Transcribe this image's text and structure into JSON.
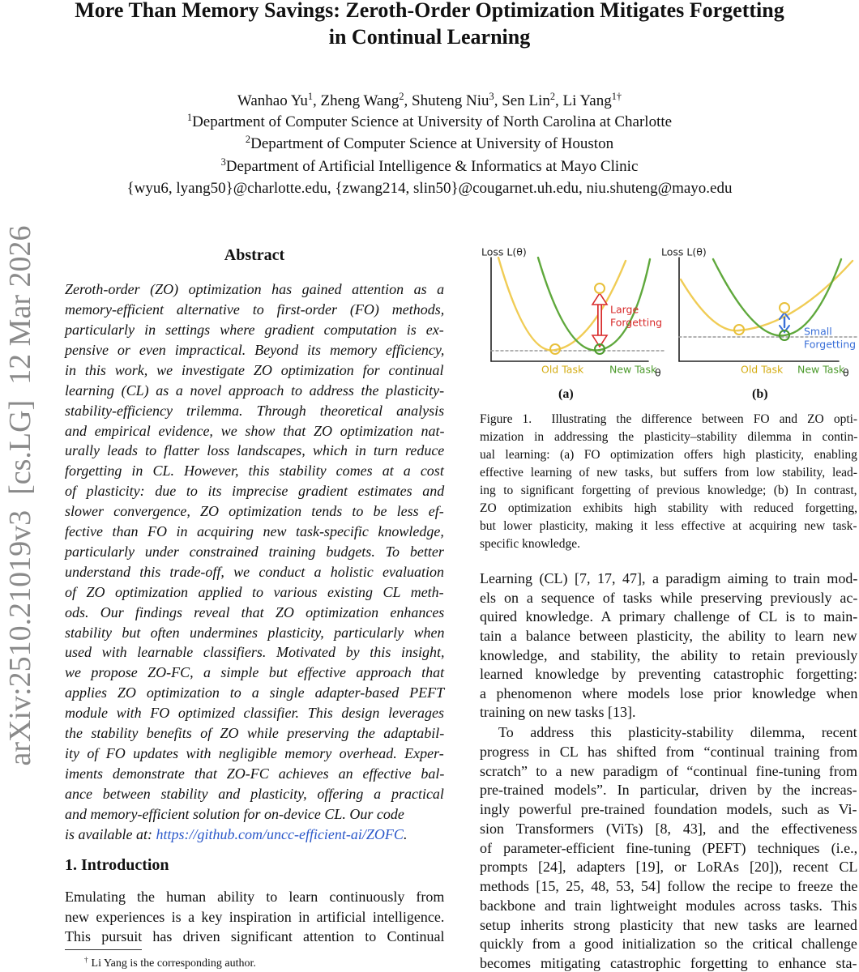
{
  "arxiv_stamp": "arXiv:2510.21019v3  [cs.LG]  12 Mar 2026",
  "title_lines": [
    "More Than Memory Savings: Zeroth-Order Optimization Mitigates Forgetting",
    "in Continual Learning"
  ],
  "authors": [
    {
      "name": "Wanhao Yu",
      "sup": "1"
    },
    {
      "name": "Zheng Wang",
      "sup": "2"
    },
    {
      "name": "Shuteng Niu",
      "sup": "3"
    },
    {
      "name": "Sen Lin",
      "sup": "2"
    },
    {
      "name": "Li Yang",
      "sup": "1†"
    }
  ],
  "authors_separator": ", ",
  "affiliations": [
    {
      "sup": "1",
      "text": "Department of Computer Science at University of North Carolina at Charlotte"
    },
    {
      "sup": "2",
      "text": "Department of Computer Science at University of Houston"
    },
    {
      "sup": "3",
      "text": "Department of Artificial Intelligence & Informatics at Mayo Clinic"
    }
  ],
  "emails": "{wyu6, lyang50}@charlotte.edu, {zwang214, slin50}@cougarnet.uh.edu, niu.shuteng@mayo.edu",
  "abstract": {
    "heading": "Abstract",
    "lines": [
      "Zeroth-order (ZO) optimization has gained attention as a",
      "memory-efficient alternative to first-order (FO) methods,",
      "particularly in settings where gradient computation is ex-",
      "pensive or even impractical. Beyond its memory efficiency,",
      "in this work, we investigate ZO optimization for continual",
      "learning (CL) as a novel approach to address the plasticity-",
      "stability-efficiency trilemma. Through theoretical analysis",
      "and empirical evidence, we show that ZO optimization nat-",
      "urally leads to flatter loss landscapes, which in turn reduce",
      "forgetting in CL. However, this stability comes at a cost",
      "of plasticity: due to its imprecise gradient estimates and",
      "slower convergence, ZO optimization tends to be less ef-",
      "fective than FO in acquiring new task-specific knowledge,",
      "particularly under constrained training budgets. To better",
      "understand this trade-off, we conduct a holistic evaluation",
      "of ZO optimization applied to various existing CL meth-",
      "ods. Our findings reveal that ZO optimization enhances",
      "stability but often undermines plasticity, particularly when",
      "used with learnable classifiers. Motivated by this insight,",
      "we propose ZO-FC, a simple but effective approach that",
      "applies ZO optimization to a single adapter-based PEFT",
      "module with FO optimized classifier. This design leverages",
      "the stability benefits of ZO while preserving the adaptabil-",
      "ity of FO updates with negligible memory overhead. Exper-",
      "iments demonstrate that ZO-FC achieves an effective bal-",
      "ance between stability and plasticity, offering a practical",
      "and memory-efficient solution for on-device CL. Our code"
    ],
    "last_line": {
      "text": "is available at: ",
      "link": "https://github.com/uncc-efficient-ai/ZOFC",
      "end": "."
    }
  },
  "introduction": {
    "heading": "1. Introduction",
    "lines": [
      "Emulating the human ability to learn continuously from",
      "new experiences is a key inspiration in artificial intelligence.",
      "This pursuit has driven significant attention to Continual"
    ]
  },
  "footnote": {
    "mark": "†",
    "text": "Li Yang is the corresponding author."
  },
  "figure": {
    "panels": [
      {
        "y_label": "Loss L(θ)",
        "x_label": "θ",
        "annotation": [
          "Large",
          "Forgetting"
        ],
        "tasks": [
          "Old Task",
          "New Task"
        ],
        "tag": "(a)"
      },
      {
        "y_label": "Loss L(θ)",
        "x_label": "θ",
        "annotation": [
          "Small",
          "Forgetting"
        ],
        "tasks": [
          "Old Task",
          "New Task"
        ],
        "tag": "(b)"
      }
    ],
    "caption_lines": [
      "Figure 1.  Illustrating the difference between FO and ZO opti-",
      "mization in addressing the plasticity–stability dilemma in contin-",
      "ual learning: (a) FO optimization offers high plasticity, enabling",
      "effective learning of new tasks, but suffers from low stability, lead-",
      "ing to significant forgetting of previous knowledge; (b) In contrast,",
      "ZO optimization exhibits high stability with reduced forgetting,",
      "but lower plasticity, making it less effective at acquiring new task-",
      "specific knowledge."
    ]
  },
  "right_column": {
    "paragraphs": [
      [
        "Learning (CL) [7, 17, 47], a paradigm aiming to train mod-",
        "els on a sequence of tasks while preserving previously ac-",
        "quired knowledge. A primary challenge of CL is to main-",
        "tain a balance between plasticity, the ability to learn new",
        "knowledge, and stability, the ability to retain previously",
        "learned knowledge by preventing catastrophic forgetting:",
        "a phenomenon where models lose prior knowledge when",
        "training on new tasks [13]."
      ],
      [
        "To address this plasticity-stability dilemma, recent",
        "progress in CL has shifted from “continual training from",
        "scratch” to a new paradigm of “continual fine-tuning from",
        "pre-trained models”. In particular, driven by the increas-",
        "ingly powerful pre-trained foundation models, such as Vi-",
        "sion Transformers (ViTs) [8, 43], and the effectiveness",
        "of parameter-efficient fine-tuning (PEFT) techniques (i.e.,",
        "prompts [24], adapters [19], or LoRAs [20]), recent CL",
        "methods [15, 25, 48, 53, 54] follow the recipe to freeze the",
        "backbone and train lightweight modules across tasks. This",
        "setup inherits strong plasticity that new tasks are learned",
        "quickly from a good initialization so the critical challenge",
        "becomes mitigating catastrophic forgetting to enhance sta-"
      ]
    ]
  }
}
